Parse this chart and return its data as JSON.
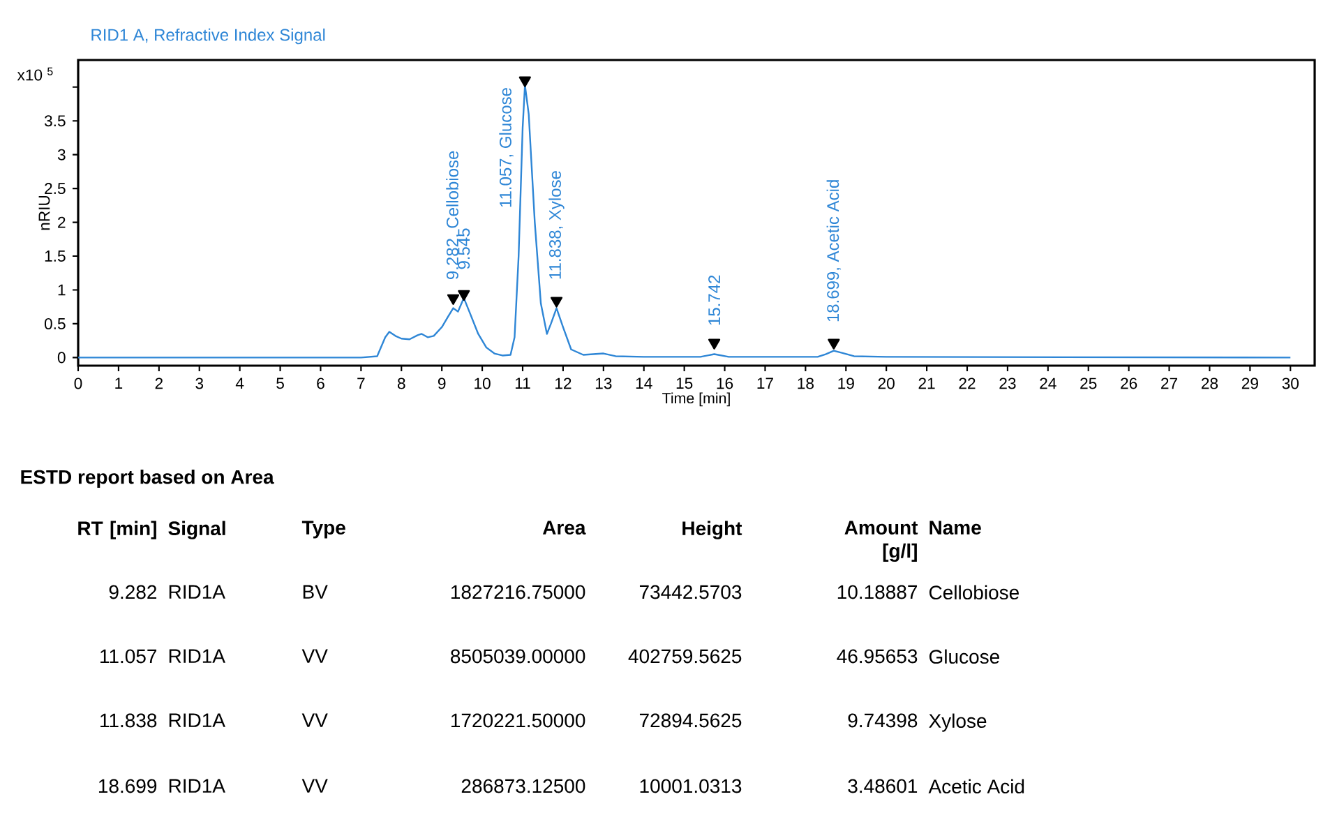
{
  "chart_data": {
    "type": "line",
    "title": "RID1 A, Refractive Index Signal",
    "xlabel": "Time [min]",
    "ylabel": "nRIU",
    "x": [
      0,
      7.0,
      7.4,
      7.6,
      7.7,
      7.85,
      8.0,
      8.2,
      8.4,
      8.5,
      8.65,
      8.8,
      9.0,
      9.15,
      9.282,
      9.4,
      9.545,
      9.7,
      9.9,
      10.1,
      10.3,
      10.5,
      10.7,
      10.8,
      10.9,
      11.0,
      11.057,
      11.15,
      11.3,
      11.45,
      11.6,
      11.7,
      11.838,
      12.0,
      12.2,
      12.5,
      13.0,
      13.3,
      14.0,
      15.4,
      15.742,
      16.1,
      18.3,
      18.5,
      18.699,
      18.9,
      19.2,
      20.0,
      30.0
    ],
    "series": [
      {
        "color": "#2e86d6",
        "values": [
          0,
          0.0,
          0.02,
          0.3,
          0.38,
          0.32,
          0.28,
          0.27,
          0.33,
          0.35,
          0.3,
          0.32,
          0.45,
          0.6,
          0.73,
          0.68,
          0.88,
          0.65,
          0.35,
          0.15,
          0.06,
          0.03,
          0.04,
          0.3,
          1.5,
          3.4,
          4.03,
          3.6,
          2.0,
          0.8,
          0.35,
          0.5,
          0.73,
          0.45,
          0.12,
          0.04,
          0.06,
          0.02,
          0.01,
          0.01,
          0.05,
          0.01,
          0.01,
          0.05,
          0.1,
          0.07,
          0.02,
          0.01,
          0.0
        ]
      },
      {
        "type": "scatter",
        "color": "#000000",
        "marker": "triangle",
        "x": [
          9.282,
          9.545,
          11.057,
          11.838,
          15.742,
          18.699
        ],
        "values": [
          0.88,
          0.94,
          4.1,
          0.84,
          0.22,
          0.22
        ]
      }
    ],
    "xlim": [
      0,
      30.6
    ],
    "ylim": [
      -0.12,
      4.4
    ],
    "xticks": [
      0,
      1,
      2,
      3,
      4,
      5,
      6,
      7,
      8,
      9,
      10,
      11,
      12,
      13,
      14,
      15,
      16,
      17,
      18,
      19,
      20,
      21,
      22,
      23,
      24,
      25,
      26,
      27,
      28,
      29,
      30
    ],
    "yticks": [
      0,
      0.5,
      1,
      1.5,
      2,
      2.5,
      3,
      3.5,
      {
        "value": 4,
        "label": null
      }
    ],
    "annotations": [
      "x10 $^{5}$",
      "ESTD report based on Area",
      "RT [min]",
      "Signal",
      "Type",
      "Area",
      "Height",
      "Amount [g/l]",
      "Name",
      "9.282",
      "RID1A",
      "BV",
      "1827216.75000",
      "73442.5703",
      "10.18887",
      "Cellobiose",
      "11.057",
      "RID1A",
      "VV",
      "8505039.00000",
      "402759.5625",
      "46.95653",
      "Glucose",
      "11.838",
      "RID1A",
      "VV",
      "1720221.50000",
      "72894.5625",
      "9.74398",
      "Xylose",
      "18.699",
      "RID1A",
      "VV",
      "286873.12500",
      "10001.0313",
      "3.48601",
      "Acetic Acid",
      {
        "text": "9.282, Cellobiose",
        "x": 9.282,
        "y": 0.73
      },
      {
        "text": "9.545",
        "x": 9.545,
        "y": 0.88
      },
      {
        "text": "11.057, Glucose",
        "x": 11.057,
        "y": 4.03
      },
      {
        "text": "11.838, Xylose",
        "x": 11.838,
        "y": 0.73
      },
      {
        "text": "15.742",
        "x": 15.742,
        "y": 0.05
      },
      {
        "text": "18.699, Acetic Acid",
        "x": 18.699,
        "y": 0.1
      }
    ]
  }
}
